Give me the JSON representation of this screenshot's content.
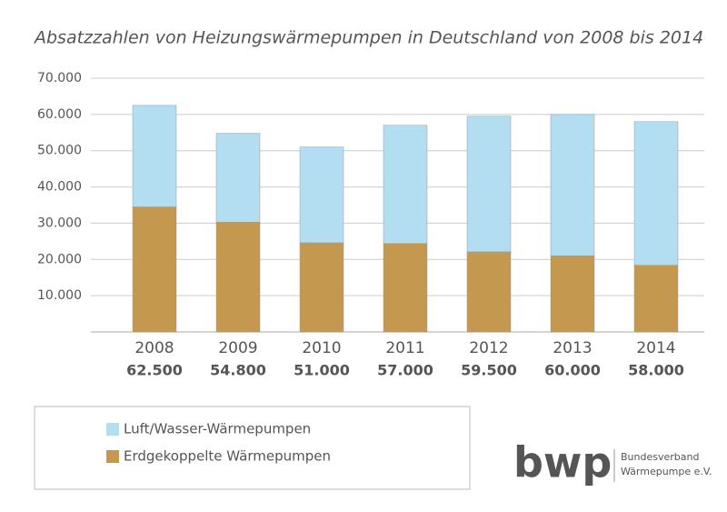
{
  "chart_data": {
    "type": "stacked-bar",
    "title": "Absatzzahlen von Heizungswärmepumpen in Deutschland von 2008 bis 2014",
    "categories": [
      "2008",
      "2009",
      "2010",
      "2011",
      "2012",
      "2013",
      "2014"
    ],
    "series": [
      {
        "name": "Erdgekoppelte Wärmepumpen",
        "color": "#c4994f",
        "values": [
          34500,
          30300,
          24600,
          24400,
          22100,
          21000,
          18400
        ]
      },
      {
        "name": "Luft/Wasser-Wärmepumpen",
        "color": "#b3def2",
        "values": [
          28000,
          24500,
          26400,
          32600,
          37400,
          39000,
          39600
        ]
      }
    ],
    "totals": {
      "values": [
        62500,
        54800,
        51000,
        57000,
        59500,
        60000,
        58000
      ],
      "value_labels": [
        "62.500",
        "54.800",
        "51.000",
        "57.000",
        "59.500",
        "60.000",
        "58.000"
      ]
    },
    "ylim": [
      0,
      70000
    ],
    "yticks": [
      {
        "value": 10000,
        "label": "10.000"
      },
      {
        "value": 20000,
        "label": "20.000"
      },
      {
        "value": 30000,
        "label": "30.000"
      },
      {
        "value": 40000,
        "label": "40.000"
      },
      {
        "value": 50000,
        "label": "50.000"
      },
      {
        "value": 60000,
        "label": "60.000"
      },
      {
        "value": 70000,
        "label": "70.000"
      }
    ],
    "grid": true
  },
  "logo": {
    "mark": "bwp",
    "lines": [
      "Bundesverband",
      "Wärmepumpe e.V."
    ]
  }
}
